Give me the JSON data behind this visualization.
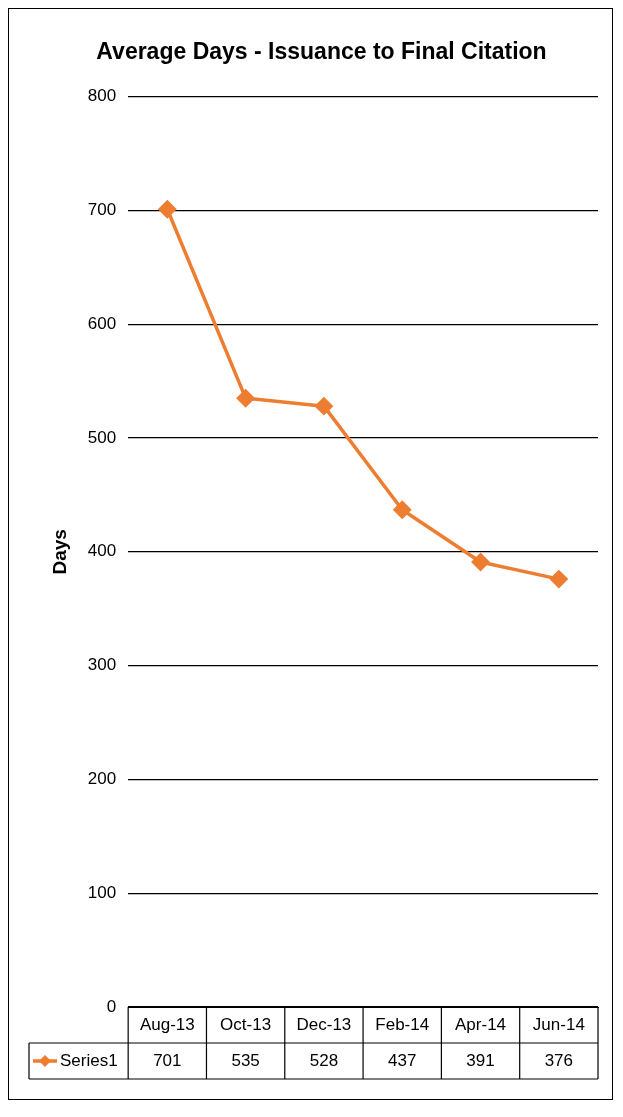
{
  "chart_data": {
    "type": "line",
    "title": "Average Days - Issuance to Final Citation",
    "ylabel": "Days",
    "categories": [
      "Aug-13",
      "Oct-13",
      "Dec-13",
      "Feb-14",
      "Apr-14",
      "Jun-14"
    ],
    "series": [
      {
        "name": "Series1",
        "color": "#ed7d31",
        "values": [
          701,
          535,
          528,
          437,
          391,
          376
        ]
      }
    ],
    "ylim": [
      0,
      800
    ],
    "yticks": [
      0,
      100,
      200,
      300,
      400,
      500,
      600,
      700,
      800
    ],
    "grid": "y",
    "legend": "bottom",
    "marker": "diamond",
    "data_labels": true
  }
}
